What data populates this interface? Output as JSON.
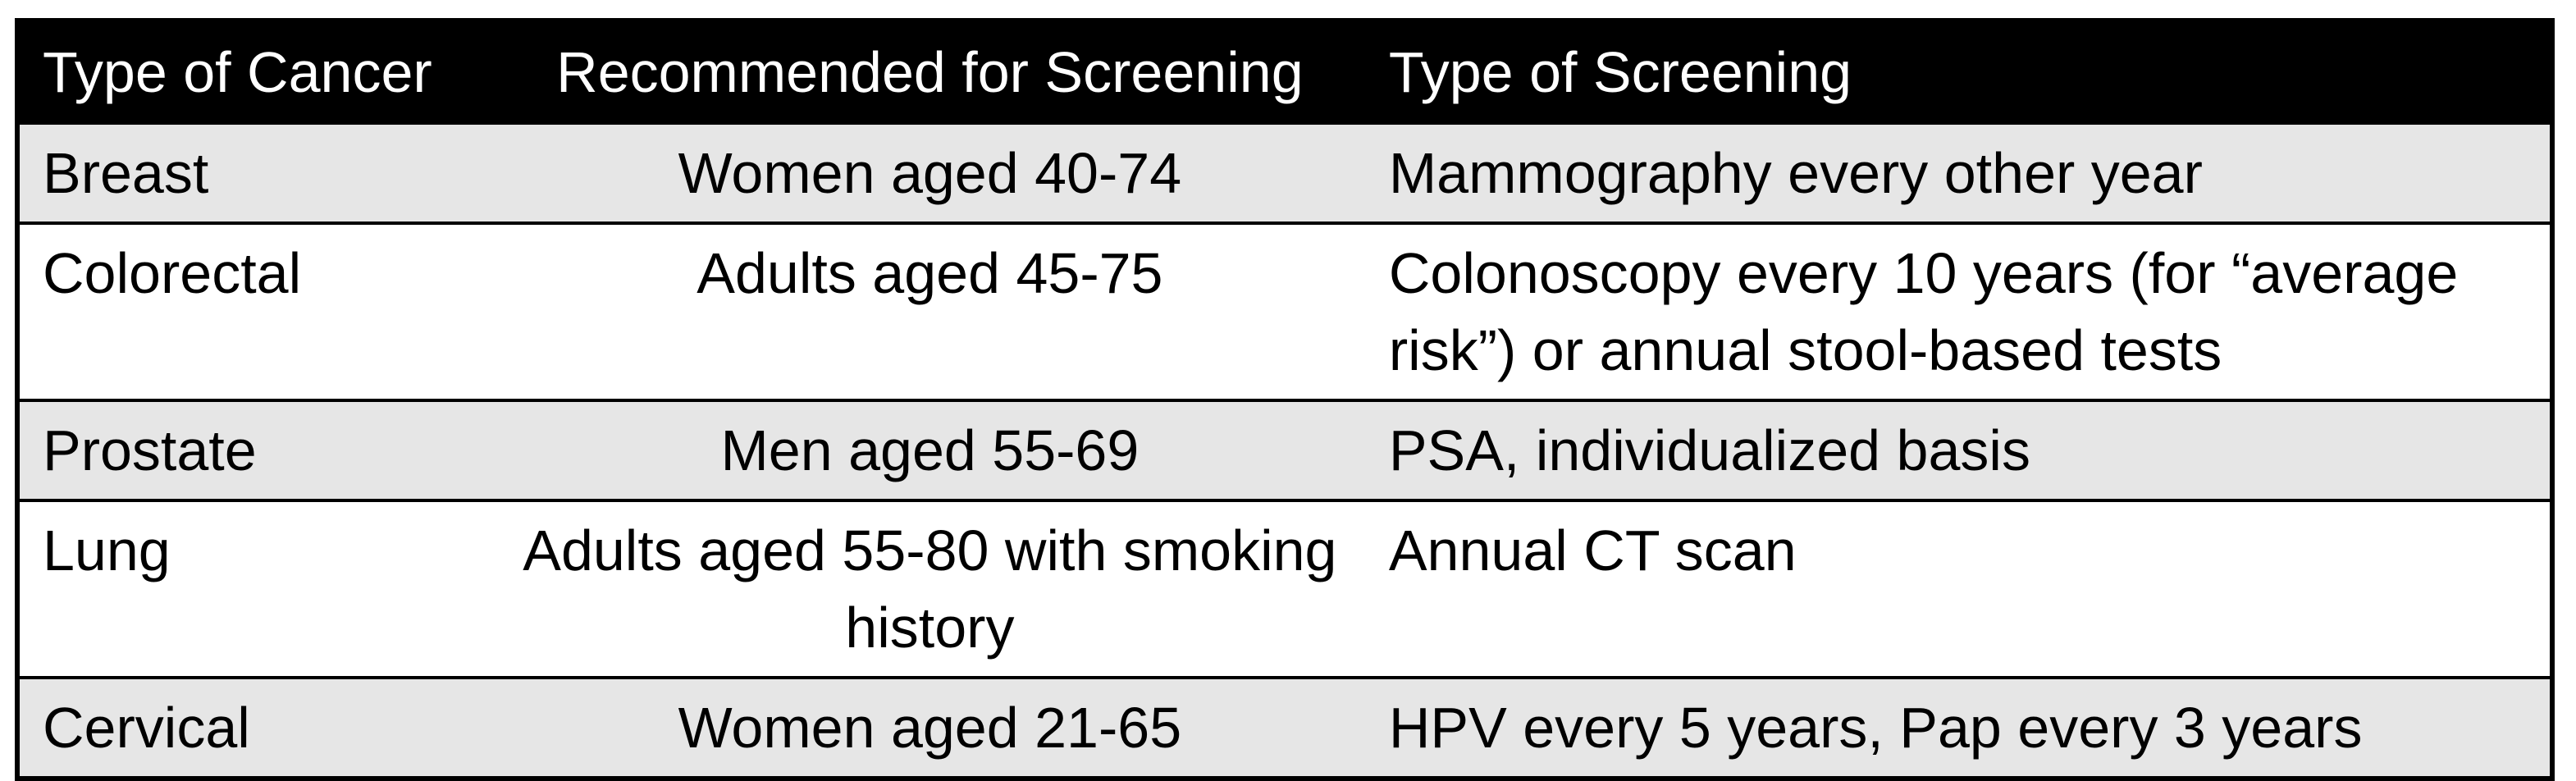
{
  "chart_data": {
    "type": "table",
    "columns": [
      "Type of Cancer",
      "Recommended for Screening",
      "Type of Screening"
    ],
    "rows": [
      [
        "Breast",
        "Women aged 40-74",
        "Mammography every other year"
      ],
      [
        "Colorectal",
        "Adults aged 45-75",
        "Colonoscopy every 10 years (for “average risk”) or annual stool-based tests"
      ],
      [
        "Prostate",
        "Men aged 55-69",
        "PSA, individualized basis"
      ],
      [
        "Lung",
        "Adults aged 55-80 with smoking history",
        "Annual CT scan"
      ],
      [
        "Cervical",
        "Women aged 21-65",
        "HPV every 5 years, Pap every 3 years"
      ]
    ],
    "layout": {
      "column_alignments": [
        "left",
        "center",
        "left"
      ],
      "shaded_row_indices": [
        0,
        2,
        4
      ]
    }
  },
  "colors": {
    "header_bg": "#000000",
    "header_text": "#ffffff",
    "row_shaded_bg": "#e6e6e6",
    "row_plain_bg": "#ffffff",
    "border": "#000000",
    "body_text": "#000000"
  }
}
